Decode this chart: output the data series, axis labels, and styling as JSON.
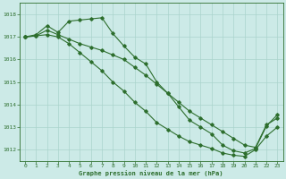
{
  "background_color": "#cceae7",
  "grid_color": "#aad4cc",
  "line_color": "#2d6e2d",
  "title": "Graphe pression niveau de la mer (hPa)",
  "xlim": [
    -0.5,
    23.5
  ],
  "ylim": [
    1011.5,
    1018.5
  ],
  "yticks": [
    1012,
    1013,
    1014,
    1015,
    1016,
    1017,
    1018
  ],
  "xticks": [
    0,
    1,
    2,
    3,
    4,
    5,
    6,
    7,
    8,
    9,
    10,
    11,
    12,
    13,
    14,
    15,
    16,
    17,
    18,
    19,
    20,
    21,
    22,
    23
  ],
  "series1": {
    "x": [
      0,
      1,
      2,
      3,
      4,
      5,
      6,
      7,
      8,
      9,
      10,
      11,
      12,
      13,
      14,
      15,
      16,
      17,
      18,
      19,
      20,
      21,
      22,
      23
    ],
    "y": [
      1017.0,
      1017.1,
      1017.5,
      1017.2,
      1017.7,
      1017.75,
      1017.8,
      1017.85,
      1017.15,
      1016.6,
      1016.1,
      1015.8,
      1015.0,
      1014.5,
      1013.9,
      1013.3,
      1013.0,
      1012.7,
      1012.2,
      1011.95,
      1011.85,
      1012.05,
      1013.05,
      1013.55
    ]
  },
  "series2": {
    "x": [
      0,
      1,
      2,
      3,
      4,
      5,
      6,
      7,
      8,
      9,
      10,
      11,
      12,
      13,
      14,
      15,
      16,
      17,
      18,
      19,
      20,
      21,
      22,
      23
    ],
    "y": [
      1017.0,
      1017.05,
      1017.3,
      1017.1,
      1016.9,
      1016.7,
      1016.55,
      1016.4,
      1016.2,
      1016.0,
      1015.65,
      1015.3,
      1014.9,
      1014.5,
      1014.1,
      1013.7,
      1013.4,
      1013.1,
      1012.8,
      1012.5,
      1012.2,
      1012.1,
      1013.1,
      1013.4
    ]
  },
  "series3": {
    "x": [
      0,
      1,
      2,
      3,
      4,
      5,
      6,
      7,
      8,
      9,
      10,
      11,
      12,
      13,
      14,
      15,
      16,
      17,
      18,
      19,
      20,
      21,
      22,
      23
    ],
    "y": [
      1017.0,
      1017.05,
      1017.1,
      1017.0,
      1016.7,
      1016.3,
      1015.9,
      1015.5,
      1015.0,
      1014.6,
      1014.1,
      1013.7,
      1013.2,
      1012.9,
      1012.6,
      1012.35,
      1012.2,
      1012.05,
      1011.85,
      1011.75,
      1011.7,
      1012.0,
      1012.6,
      1013.0
    ]
  }
}
